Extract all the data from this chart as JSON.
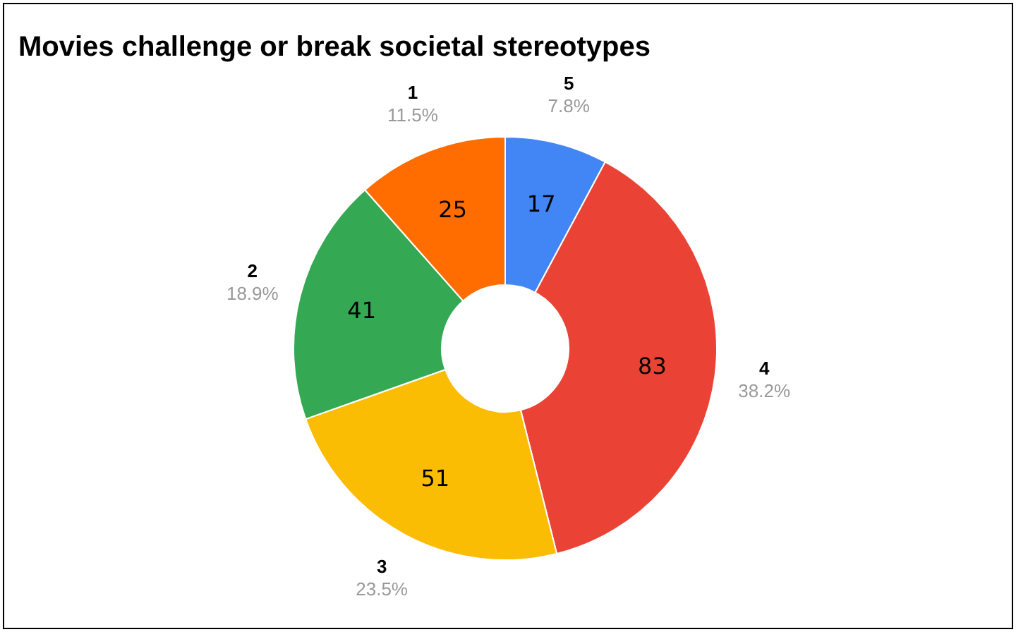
{
  "chart_data": {
    "type": "donut",
    "title": "Movies challenge or break societal stereotypes",
    "categories": [
      "5",
      "4",
      "3",
      "2",
      "1"
    ],
    "values": [
      17,
      83,
      51,
      41,
      25
    ],
    "annotations": [
      "7.8%",
      "38.2%",
      "23.5%",
      "18.9%",
      "11.5%"
    ],
    "colors": [
      "#4285f4",
      "#ea4335",
      "#fbbc04",
      "#34a853",
      "#ff6d01"
    ],
    "data_labels": true,
    "legend": false
  }
}
